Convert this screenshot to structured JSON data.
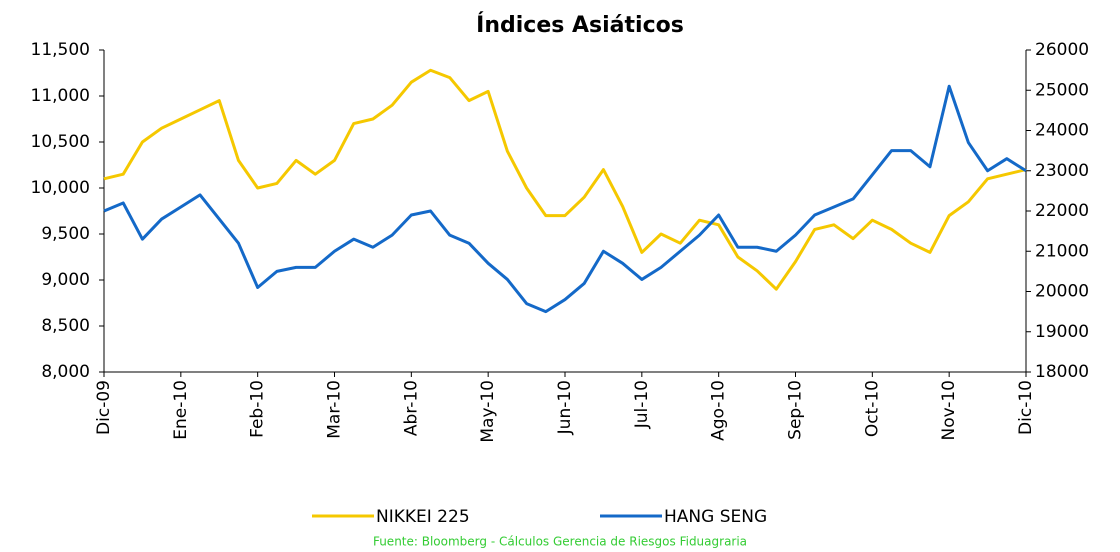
{
  "chart_data": {
    "type": "line",
    "title": "Índices Asiáticos",
    "source": "Fuente: Bloomberg - Cálculos Gerencia de Riesgos Fiduagraria",
    "categories": [
      "Dic-09",
      null,
      null,
      null,
      "Ene-10",
      null,
      null,
      null,
      "Feb-10",
      null,
      null,
      null,
      "Mar-10",
      null,
      null,
      null,
      "Abr-10",
      null,
      null,
      null,
      "May-10",
      null,
      null,
      null,
      "Jun-10",
      null,
      null,
      null,
      "Jul-10",
      null,
      null,
      null,
      "Ago-10",
      null,
      null,
      null,
      "Sep-10",
      null,
      null,
      null,
      "Oct-10",
      null,
      null,
      null,
      "Nov-10",
      null,
      null,
      null,
      "Dic-10"
    ],
    "series": [
      {
        "name": "NIKKEI 225",
        "color": "#f5c800",
        "axis": "y",
        "values": [
          10100,
          10150,
          10500,
          10650,
          10750,
          10850,
          10950,
          10300,
          10000,
          10050,
          10300,
          10150,
          10300,
          10700,
          10750,
          10900,
          11150,
          11280,
          11200,
          10950,
          11050,
          10400,
          10000,
          9700,
          9700,
          9900,
          10200,
          9800,
          9300,
          9500,
          9400,
          9650,
          9600,
          9250,
          9100,
          8900,
          9200,
          9550,
          9600,
          9450,
          9650,
          9550,
          9400,
          9300,
          9700,
          9850,
          10100,
          10150,
          10200
        ]
      },
      {
        "name": "HANG SENG",
        "color": "#1469c8",
        "axis": "y2",
        "values": [
          22000,
          22200,
          21300,
          21800,
          22100,
          22400,
          21800,
          21200,
          20100,
          20500,
          20600,
          20600,
          21000,
          21300,
          21100,
          21400,
          21900,
          22000,
          21400,
          21200,
          20700,
          20300,
          19700,
          19500,
          19800,
          20200,
          21000,
          20700,
          20300,
          20600,
          21000,
          21400,
          21900,
          21100,
          21100,
          21000,
          21400,
          21900,
          22100,
          22300,
          22900,
          23500,
          23500,
          23100,
          25100,
          23700,
          23000,
          23300,
          23000
        ]
      }
    ],
    "ylim": [
      8000,
      11500
    ],
    "yticks": [
      {
        "value": 8000,
        "label": "8,000"
      },
      {
        "value": 8500,
        "label": "8,500"
      },
      {
        "value": 9000,
        "label": "9,000"
      },
      {
        "value": 9500,
        "label": "9,500"
      },
      {
        "value": 10000,
        "label": "10,000"
      },
      {
        "value": 10500,
        "label": "10,500"
      },
      {
        "value": 11000,
        "label": "11,000"
      },
      {
        "value": 11500,
        "label": "11,500"
      }
    ],
    "y2lim": [
      18000,
      26000
    ],
    "y2ticks": [
      18000,
      19000,
      20000,
      21000,
      22000,
      23000,
      24000,
      25000,
      26000
    ],
    "grid": false,
    "legend": "bottom"
  }
}
